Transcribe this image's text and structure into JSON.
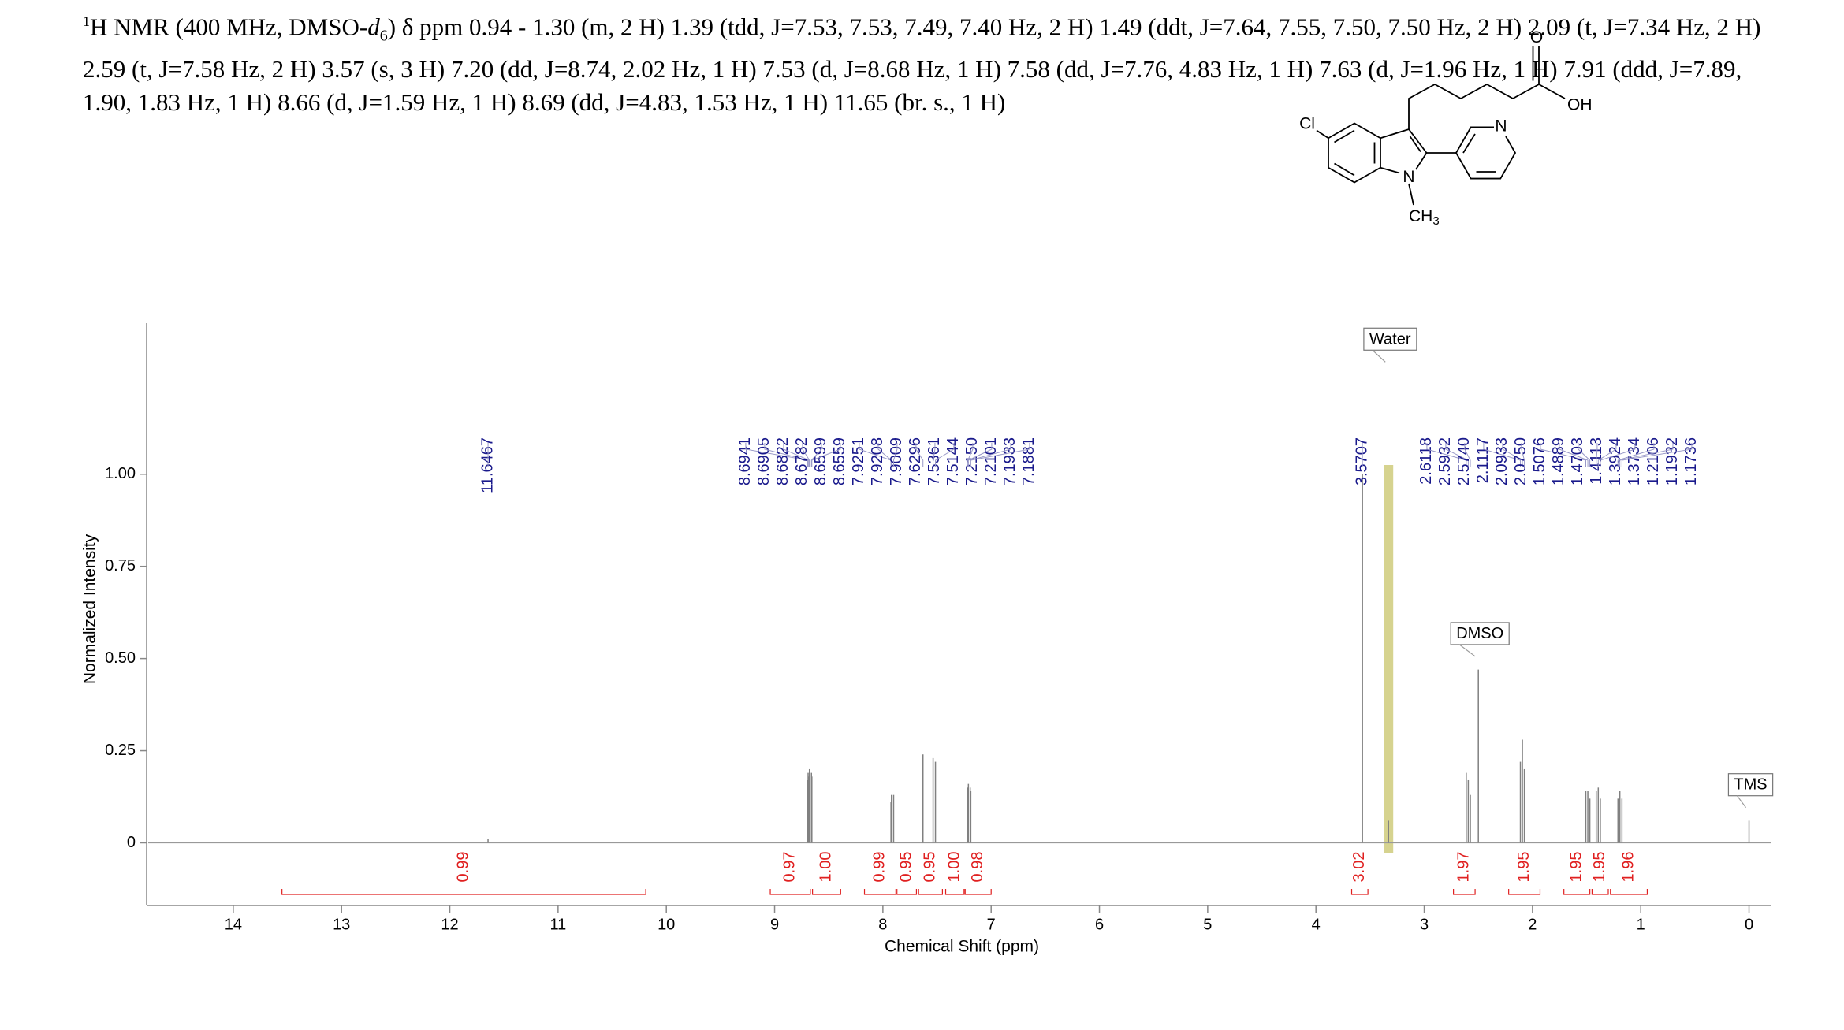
{
  "header": {
    "parts": [
      "1",
      "H NMR (400 MHz, DMSO-",
      "d",
      "6",
      ") δ ppm 0.94 - 1.30 (m, 2 H) 1.39 (tdd, J=7.53, 7.53, 7.49, 7.40 Hz, 2 H) 1.49 (ddt, J=7.64, 7.55, 7.50, 7.50 Hz, 2 H) 2.09 (t, J=7.34 Hz, 2 H) 2.59 (t, J=7.58 Hz, 2 H) 3.57 (s, 3 H) 7.20 (dd, J=8.74, 2.02 Hz, 1 H) 7.53 (d, J=8.68 Hz, 1 H) 7.58 (dd, J=7.76, 4.83 Hz, 1 H) 7.63 (d, J=1.96 Hz, 1 H) 7.91 (ddd, J=7.89, 1.90, 1.83 Hz, 1 H) 8.66 (d, J=1.59 Hz, 1 H) 8.69 (dd, J=4.83, 1.53 Hz, 1 H) 11.65 (br. s., 1 H)"
    ]
  },
  "structure": {
    "atoms": [
      "Cl",
      "N",
      "CH",
      "3",
      "N",
      "O",
      "OH"
    ]
  },
  "chart_data": {
    "type": "nmr",
    "x_label": "Chemical Shift (ppm)",
    "y_label": "Normalized Intensity",
    "xlim": [
      14.8,
      -0.2
    ],
    "xticks": [
      0,
      1,
      2,
      3,
      4,
      5,
      6,
      7,
      8,
      9,
      10,
      11,
      12,
      13,
      14
    ],
    "ylim": [
      -0.17,
      1.41
    ],
    "yticks": [
      0,
      0.25,
      {
        "value": 0.5,
        "label": "0.50"
      },
      0.75,
      {
        "value": 1,
        "label": "1.00"
      }
    ],
    "spectrum": {
      "color": "#808080",
      "x": [
        11.6467,
        8.6941,
        8.6905,
        8.6822,
        8.6782,
        8.6599,
        8.6559,
        7.9251,
        7.9208,
        7.9009,
        7.6296,
        7.5361,
        7.5144,
        7.215,
        7.2101,
        7.1933,
        7.1881,
        3.5707,
        3.33,
        2.6118,
        2.5932,
        2.574,
        2.5,
        2.1117,
        2.0933,
        2.075,
        1.5076,
        1.4889,
        1.4703,
        1.4113,
        1.3924,
        1.3734,
        1.2106,
        1.1932,
        1.1736,
        0
      ],
      "y": [
        0.01,
        0.17,
        0.19,
        0.18,
        0.2,
        0.19,
        0.18,
        0.11,
        0.13,
        0.13,
        0.24,
        0.23,
        0.22,
        0.15,
        0.16,
        0.15,
        0.14,
        1.0,
        0.06,
        0.19,
        0.17,
        0.13,
        0.47,
        0.22,
        0.28,
        0.2,
        0.14,
        0.14,
        0.12,
        0.14,
        0.15,
        0.12,
        0.12,
        0.14,
        0.12,
        0.06
      ]
    },
    "peaks": {
      "color": "#1a1a8c",
      "values": [
        11.6467,
        8.6941,
        8.6905,
        8.6822,
        8.6782,
        8.6599,
        8.6559,
        7.9251,
        7.9208,
        7.9009,
        7.6296,
        7.5361,
        7.5144,
        7.215,
        7.2101,
        7.1933,
        7.1881,
        3.5707,
        2.6118,
        2.5932,
        2.574,
        2.1117,
        2.0933,
        2.075,
        1.5076,
        1.4889,
        1.4703,
        1.4113,
        1.3924,
        1.3734,
        1.2106,
        1.1932,
        1.1736
      ],
      "value_labels": [
        "11.6467",
        "8.6941",
        "8.6905",
        "8.6822",
        "8.6782",
        "8.6599",
        "8.6559",
        "7.9251",
        "7.9208",
        "7.9009",
        "7.6296",
        "7.5361",
        "7.5144",
        "7.2150",
        "7.2101",
        "7.1933",
        "7.1881",
        "3.5707",
        "2.6118",
        "2.5932",
        "2.5740",
        "2.1117",
        "2.0933",
        "2.0750",
        "1.5076",
        "1.4889",
        "1.4703",
        "1.4113",
        "1.3924",
        "1.3734",
        "1.2106",
        "1.1932",
        "1.1736"
      ]
    },
    "integrals": {
      "color": "#e02020",
      "values": [
        0.99,
        0.97,
        1.0,
        0.99,
        0.95,
        0.95,
        1.0,
        0.98,
        3.02,
        1.97,
        1.95,
        1.95,
        1.95,
        1.96
      ],
      "value_labels": [
        "0.99",
        "0.97",
        "1.00",
        "0.99",
        "0.95",
        "0.95",
        "1.00",
        "0.98",
        "3.02",
        "1.97",
        "1.95",
        "1.95",
        "1.95",
        "1.96"
      ],
      "ranges": [
        [
          13.55,
          10.19
        ],
        [
          9.04,
          8.67
        ],
        [
          8.65,
          8.39
        ],
        [
          8.17,
          7.88
        ],
        [
          7.87,
          7.69
        ],
        [
          7.67,
          7.45
        ],
        [
          7.42,
          7.25
        ],
        [
          7.24,
          7.0
        ],
        [
          3.67,
          3.52
        ],
        [
          2.73,
          2.53
        ],
        [
          2.22,
          1.93
        ],
        [
          1.71,
          1.47
        ],
        [
          1.45,
          1.3
        ],
        [
          1.28,
          0.94
        ]
      ]
    },
    "annotations": [
      {
        "text": "Water",
        "x": 3.33
      },
      {
        "text": "DMSO",
        "x": 2.5
      },
      {
        "text": "TMS",
        "x": 0
      }
    ]
  }
}
